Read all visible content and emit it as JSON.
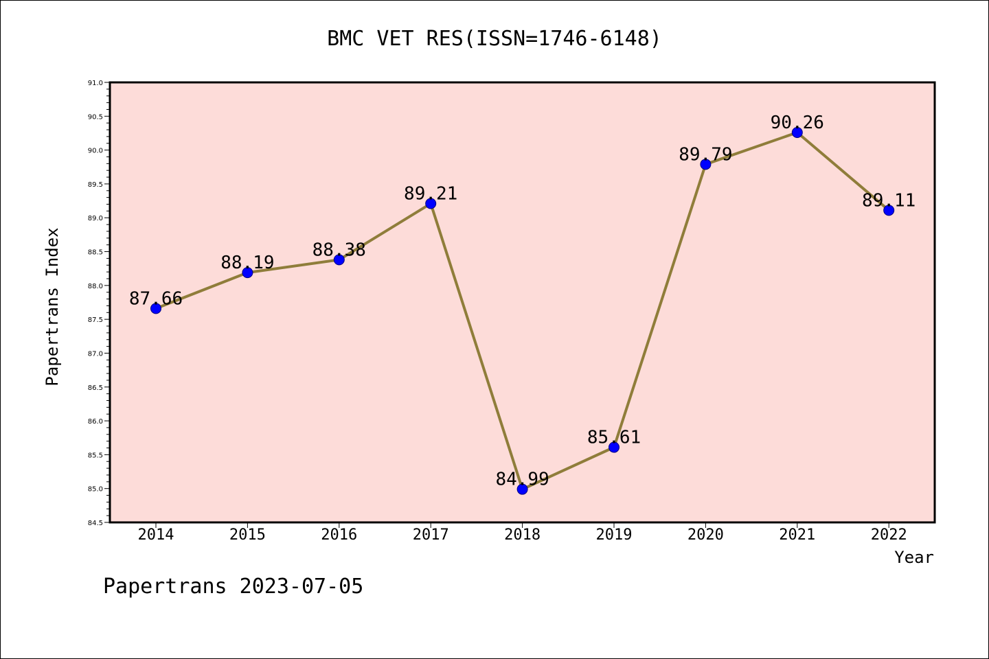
{
  "chart_data": {
    "type": "line",
    "title": "BMC VET RES(ISSN=1746-6148)",
    "xlabel": "Year",
    "ylabel": "Papertrans Index",
    "categories": [
      "2014",
      "2015",
      "2016",
      "2017",
      "2018",
      "2019",
      "2020",
      "2021",
      "2022"
    ],
    "series": [
      {
        "values": [
          87.66,
          88.19,
          88.38,
          89.21,
          84.99,
          85.61,
          89.79,
          90.26,
          89.11
        ],
        "labels": [
          "87.66",
          "88.19",
          "88.38",
          "89.21",
          "84.99",
          "85.61",
          "89.79",
          "90.26",
          "89.11"
        ]
      }
    ],
    "y_ticks": [
      "84.5",
      "85.0",
      "85.5",
      "86.0",
      "86.5",
      "87.0",
      "87.5",
      "88.0",
      "88.5",
      "89.0",
      "89.5",
      "90.0",
      "90.5",
      "91.0"
    ],
    "ylim": [
      84.5,
      91.0
    ],
    "grid": false,
    "colors": {
      "plot_background": "#fddcd9",
      "line": "#8f7d3a",
      "marker": "#0000ff"
    }
  },
  "footer": "Papertrans 2023-07-05"
}
